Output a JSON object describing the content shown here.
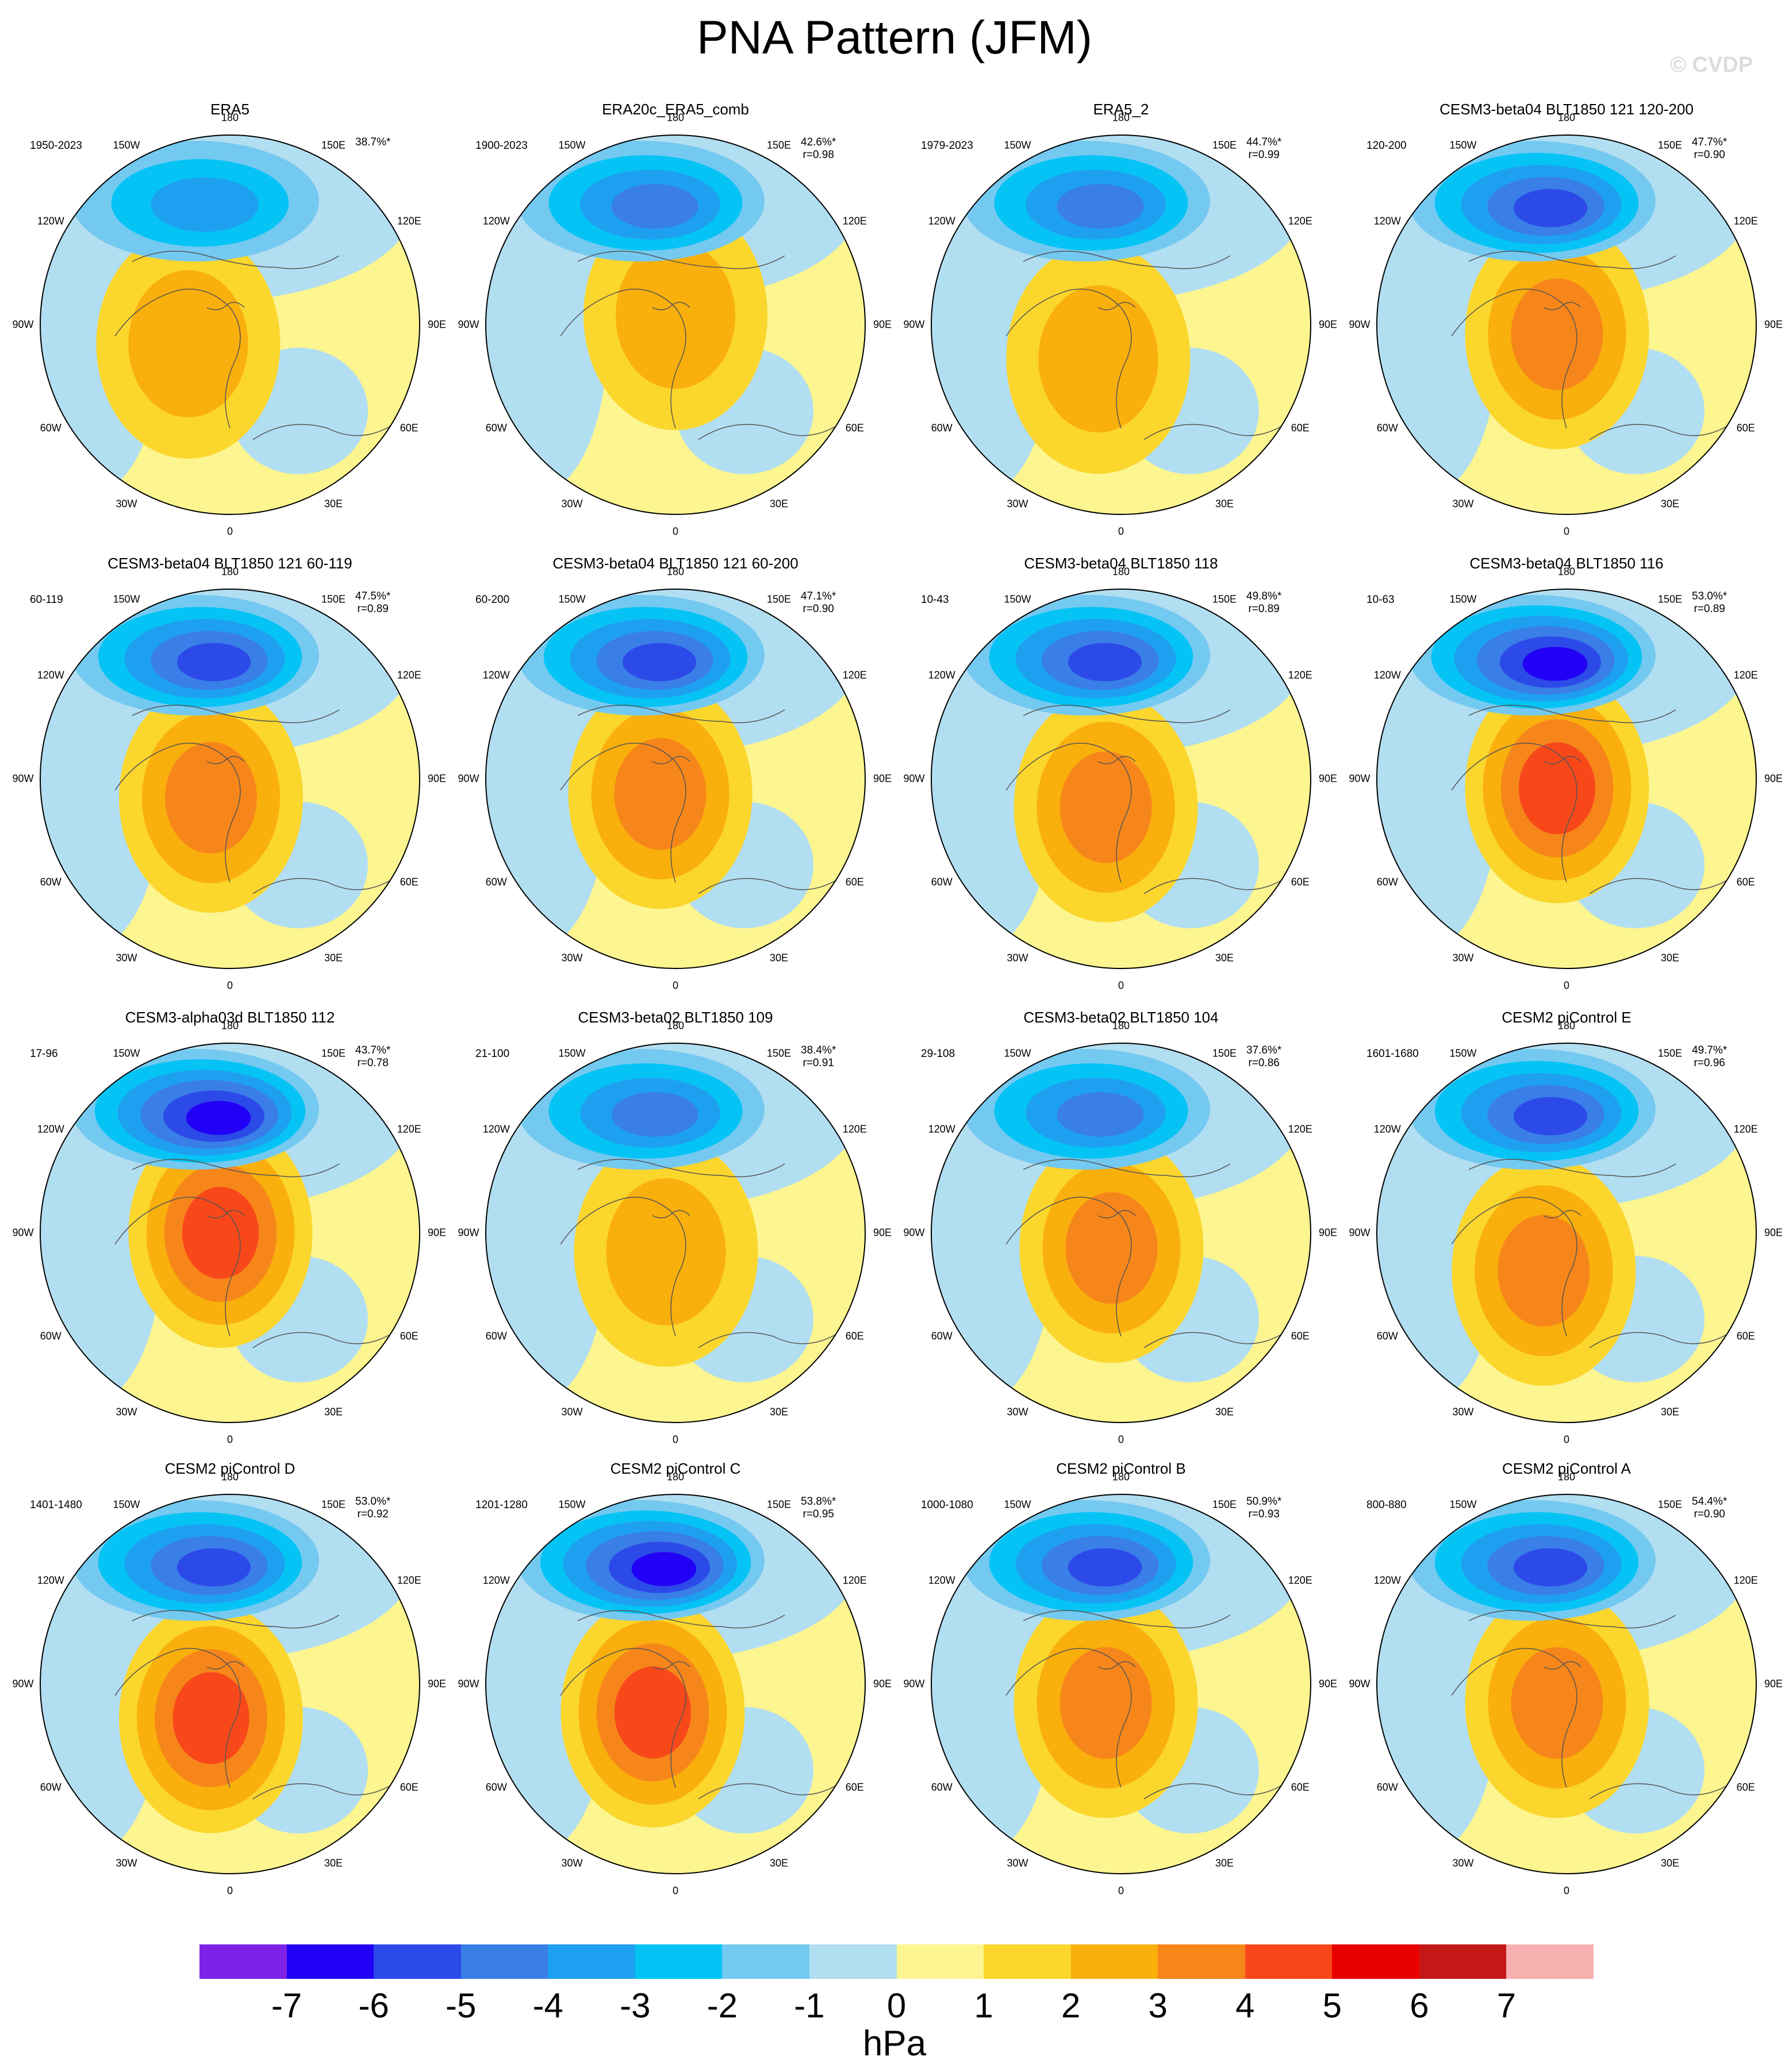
{
  "title": "PNA Pattern (JFM)",
  "watermark": "© CVDP",
  "lon_labels": [
    "180",
    "150E",
    "120E",
    "90E",
    "60E",
    "30E",
    "0",
    "30W",
    "60W",
    "90W",
    "120W",
    "150W"
  ],
  "panels": [
    {
      "title": "ERA5",
      "years": "1950-2023",
      "pct": "38.7%*",
      "r": "",
      "strength": 0.55,
      "pos_center": [
        -0.22,
        0.1
      ]
    },
    {
      "title": "ERA20c_ERA5_comb",
      "years": "1900-2023",
      "pct": "42.6%*",
      "r": "r=0.98",
      "strength": 0.6,
      "pos_center": [
        0.0,
        -0.05
      ]
    },
    {
      "title": "ERA5_2",
      "years": "1979-2023",
      "pct": "44.7%*",
      "r": "r=0.99",
      "strength": 0.62,
      "pos_center": [
        -0.12,
        0.18
      ]
    },
    {
      "title": "CESM3-beta04 BLT1850 121 120-200",
      "years": "120-200",
      "pct": "47.7%*",
      "r": "r=0.90",
      "strength": 0.8,
      "pos_center": [
        -0.05,
        0.05
      ]
    },
    {
      "title": "CESM3-beta04 BLT1850 121 60-119",
      "years": "60-119",
      "pct": "47.5%*",
      "r": "r=0.89",
      "strength": 0.85,
      "pos_center": [
        -0.1,
        0.1
      ]
    },
    {
      "title": "CESM3-beta04 BLT1850 121 60-200",
      "years": "60-200",
      "pct": "47.1%*",
      "r": "r=0.90",
      "strength": 0.85,
      "pos_center": [
        -0.08,
        0.08
      ]
    },
    {
      "title": "CESM3-beta04 BLT1850 118",
      "years": "10-43",
      "pct": "49.8%*",
      "r": "r=0.89",
      "strength": 0.75,
      "pos_center": [
        -0.08,
        0.15
      ]
    },
    {
      "title": "CESM3-beta04 BLT1850 116",
      "years": "10-63",
      "pct": "53.0%*",
      "r": "r=0.89",
      "strength": 0.95,
      "pos_center": [
        -0.05,
        0.05
      ]
    },
    {
      "title": "CESM3-alpha03d BLT1850 112",
      "years": "17-96",
      "pct": "43.7%*",
      "r": "r=0.78",
      "strength": 0.98,
      "pos_center": [
        -0.05,
        0.0
      ]
    },
    {
      "title": "CESM3-beta02 BLT1850 109",
      "years": "21-100",
      "pct": "38.4%*",
      "r": "r=0.91",
      "strength": 0.6,
      "pos_center": [
        -0.05,
        0.1
      ]
    },
    {
      "title": "CESM3-beta02 BLT1850 104",
      "years": "29-108",
      "pct": "37.6%*",
      "r": "r=0.86",
      "strength": 0.7,
      "pos_center": [
        -0.05,
        0.08
      ]
    },
    {
      "title": "CESM2 piControl E",
      "years": "1601-1680",
      "pct": "49.7%*",
      "r": "r=0.96",
      "strength": 0.8,
      "pos_center": [
        -0.12,
        0.2
      ]
    },
    {
      "title": "CESM2 piControl D",
      "years": "1401-1480",
      "pct": "53.0%*",
      "r": "r=0.92",
      "strength": 0.9,
      "pos_center": [
        -0.1,
        0.18
      ]
    },
    {
      "title": "CESM2 piControl C",
      "years": "1201-1280",
      "pct": "53.8%*",
      "r": "r=0.95",
      "strength": 0.95,
      "pos_center": [
        -0.12,
        0.15
      ]
    },
    {
      "title": "CESM2 piControl B",
      "years": "1000-1080",
      "pct": "50.9%*",
      "r": "r=0.93",
      "strength": 0.85,
      "pos_center": [
        -0.08,
        0.1
      ]
    },
    {
      "title": "CESM2 piControl A",
      "years": "800-880",
      "pct": "54.4%*",
      "r": "r=0.90",
      "strength": 0.85,
      "pos_center": [
        -0.05,
        0.1
      ]
    }
  ],
  "colorbar": {
    "colors": [
      "#7e22e8",
      "#2200f5",
      "#2c4ae8",
      "#3a7ee8",
      "#1ea0f0",
      "#05c4f5",
      "#74c9f0",
      "#b2def1",
      "#fcf590",
      "#fbd62c",
      "#f9af0c",
      "#f6861a",
      "#f8481a",
      "#e80000",
      "#c41818",
      "#f7b0b0"
    ],
    "labels": [
      "-7",
      "-6",
      "-5",
      "-4",
      "-3",
      "-2",
      "-1",
      "0",
      "1",
      "2",
      "3",
      "4",
      "5",
      "6",
      "7"
    ],
    "unit": "hPa"
  }
}
